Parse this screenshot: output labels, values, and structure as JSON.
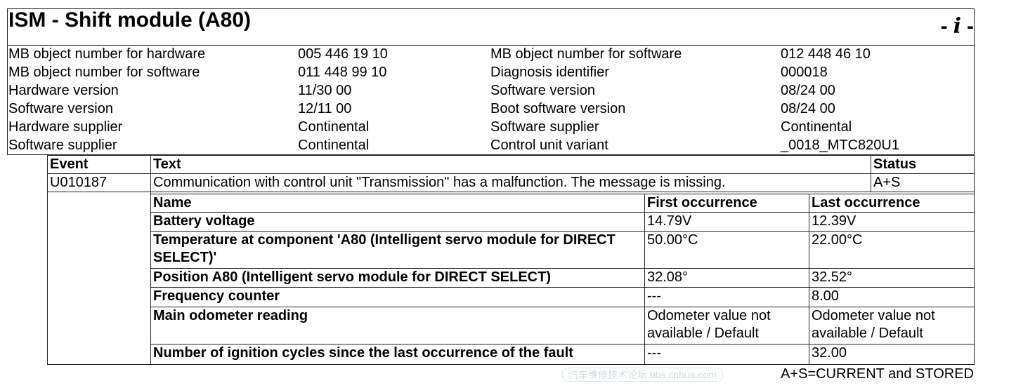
{
  "header": {
    "title": "ISM - Shift module (A80)",
    "info_icon": "info-icon"
  },
  "info_rows": [
    [
      "MB object number for hardware",
      "005 446 19 10",
      "MB object number for software",
      "012 448 46 10"
    ],
    [
      "MB object number for software",
      "011 448 99 10",
      "Diagnosis identifier",
      "000018"
    ],
    [
      "Hardware version",
      "11/30 00",
      "Software version",
      "08/24 00"
    ],
    [
      "Software version",
      "12/11 00",
      "Boot software version",
      "08/24 00"
    ],
    [
      "Hardware supplier",
      "Continental",
      "Software supplier",
      "Continental"
    ],
    [
      "Software supplier",
      "Continental",
      "Control unit variant",
      "_0018_MTC820U1"
    ]
  ],
  "events": {
    "headers": [
      "Event",
      "Text",
      "Status"
    ],
    "rows": [
      [
        "U010187",
        "Communication with control unit \"Transmission\" has a malfunction. The message is missing.",
        "A+S"
      ]
    ]
  },
  "freeze_frame": {
    "headers": [
      "Name",
      "First occurrence",
      "Last occurrence"
    ],
    "rows": [
      [
        "Battery voltage",
        "14.79V",
        "12.39V"
      ],
      [
        "Temperature at component 'A80 (Intelligent servo module for DIRECT SELECT)'",
        "50.00°C",
        "22.00°C"
      ],
      [
        "Position A80 (Intelligent servo module for DIRECT SELECT)",
        "32.08°",
        "32.52°"
      ],
      [
        "Frequency counter",
        "---",
        "8.00"
      ],
      [
        "Main odometer reading",
        "Odometer value not available / Default",
        "Odometer value not available / Default"
      ],
      [
        "Number of ignition cycles since the last occurrence of the fault",
        "---",
        "32.00"
      ]
    ]
  },
  "footer": {
    "legend": "A+S=CURRENT and STORED"
  },
  "watermark": "汽车维修技术论坛 bbs.cphua.com"
}
